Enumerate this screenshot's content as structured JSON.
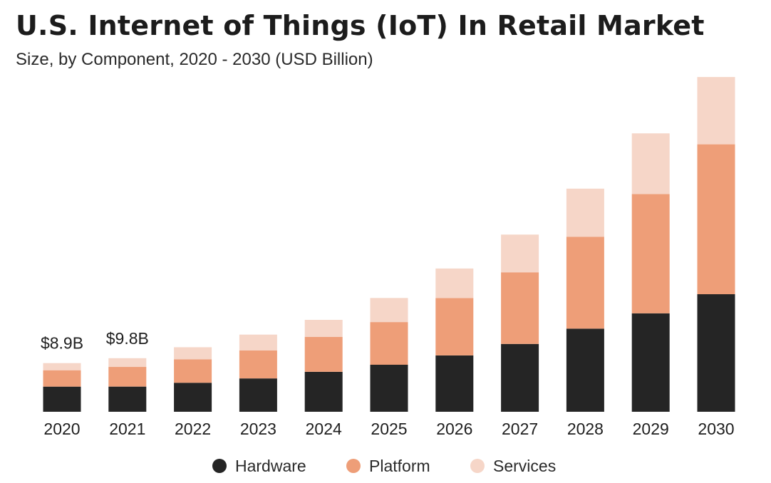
{
  "header": {
    "title": "U.S. Internet of Things (IoT) In Retail Market",
    "subtitle": "Size, by Component, 2020 - 2030 (USD Billion)"
  },
  "colors": {
    "hardware": "#252525",
    "platform": "#ee9e78",
    "services": "#f6d6c8",
    "text": "#1f1f1f"
  },
  "chart_data": {
    "type": "bar",
    "stacked": true,
    "title": "U.S. Internet of Things (IoT) In Retail Market",
    "subtitle": "Size, by Component, 2020 - 2030 (USD Billion)",
    "categories": [
      "2020",
      "2021",
      "2022",
      "2023",
      "2024",
      "2025",
      "2026",
      "2027",
      "2028",
      "2029",
      "2030"
    ],
    "series": [
      {
        "name": "Hardware",
        "color": "#252525",
        "values": [
          4.6,
          4.6,
          5.3,
          6.1,
          7.3,
          8.6,
          10.3,
          12.4,
          15.2,
          18.0,
          21.5
        ]
      },
      {
        "name": "Platform",
        "color": "#ee9e78",
        "values": [
          3.0,
          3.6,
          4.3,
          5.1,
          6.4,
          7.8,
          10.5,
          13.1,
          16.8,
          21.8,
          27.4
        ]
      },
      {
        "name": "Services",
        "color": "#f6d6c8",
        "values": [
          1.3,
          1.6,
          2.2,
          2.9,
          3.1,
          4.4,
          5.4,
          6.9,
          8.8,
          11.1,
          12.3
        ]
      }
    ],
    "totals": [
      8.9,
      9.8,
      11.8,
      14.1,
      16.8,
      20.8,
      26.2,
      32.4,
      40.8,
      50.9,
      61.2
    ],
    "annotations": [
      {
        "category": "2020",
        "label": "$8.9B"
      },
      {
        "category": "2021",
        "label": "$9.8B"
      }
    ],
    "ylim": [
      0,
      62
    ],
    "xlabel": "",
    "ylabel": "",
    "grid": false,
    "legend_position": "bottom-center"
  },
  "legend": {
    "items": [
      {
        "label": "Hardware"
      },
      {
        "label": "Platform"
      },
      {
        "label": "Services"
      }
    ]
  }
}
